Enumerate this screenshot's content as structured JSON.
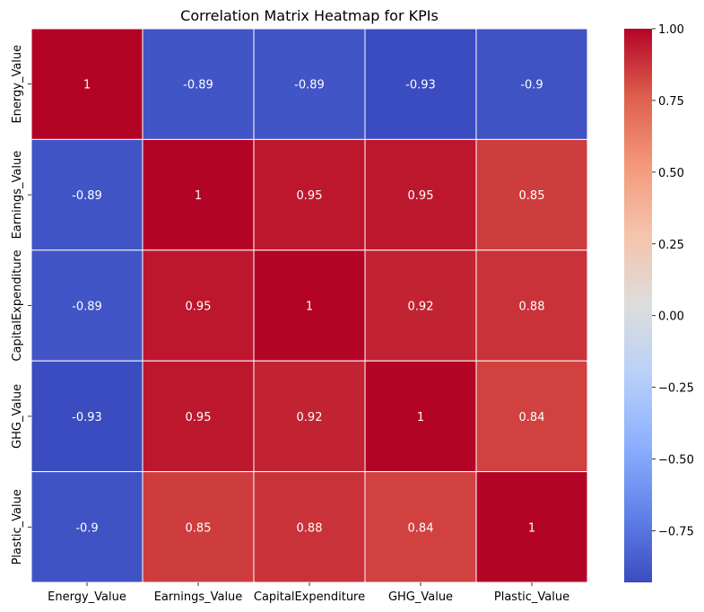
{
  "chart_data": {
    "type": "heatmap",
    "title": "Correlation Matrix Heatmap for KPIs",
    "x_categories": [
      "Energy_Value",
      "Earnings_Value",
      "CapitalExpenditure",
      "GHG_Value",
      "Plastic_Value"
    ],
    "y_categories": [
      "Energy_Value",
      "Earnings_Value",
      "CapitalExpenditure",
      "GHG_Value",
      "Plastic_Value"
    ],
    "values": [
      [
        1,
        -0.89,
        -0.89,
        -0.93,
        -0.9
      ],
      [
        -0.89,
        1,
        0.95,
        0.95,
        0.85
      ],
      [
        -0.89,
        0.95,
        1,
        0.92,
        0.88
      ],
      [
        -0.93,
        0.95,
        0.92,
        1,
        0.84
      ],
      [
        -0.9,
        0.85,
        0.88,
        0.84,
        1
      ]
    ],
    "cell_labels": [
      [
        "1",
        "-0.89",
        "-0.89",
        "-0.93",
        "-0.9"
      ],
      [
        "-0.89",
        "1",
        "0.95",
        "0.95",
        "0.85"
      ],
      [
        "-0.89",
        "0.95",
        "1",
        "0.92",
        "0.88"
      ],
      [
        "-0.93",
        "0.95",
        "0.92",
        "1",
        "0.84"
      ],
      [
        "-0.9",
        "0.85",
        "0.88",
        "0.84",
        "1"
      ]
    ],
    "colormap": "coolwarm",
    "color_range": [
      -0.93,
      1
    ],
    "colorbar": {
      "ticks": [
        1.0,
        0.75,
        0.5,
        0.25,
        0.0,
        -0.25,
        -0.5,
        -0.75
      ],
      "tick_labels": [
        "1.00",
        "0.75",
        "0.50",
        "0.25",
        "0.00",
        "−0.25",
        "−0.50",
        "−0.75"
      ]
    },
    "legend": "colorbar-right",
    "grid": false
  }
}
